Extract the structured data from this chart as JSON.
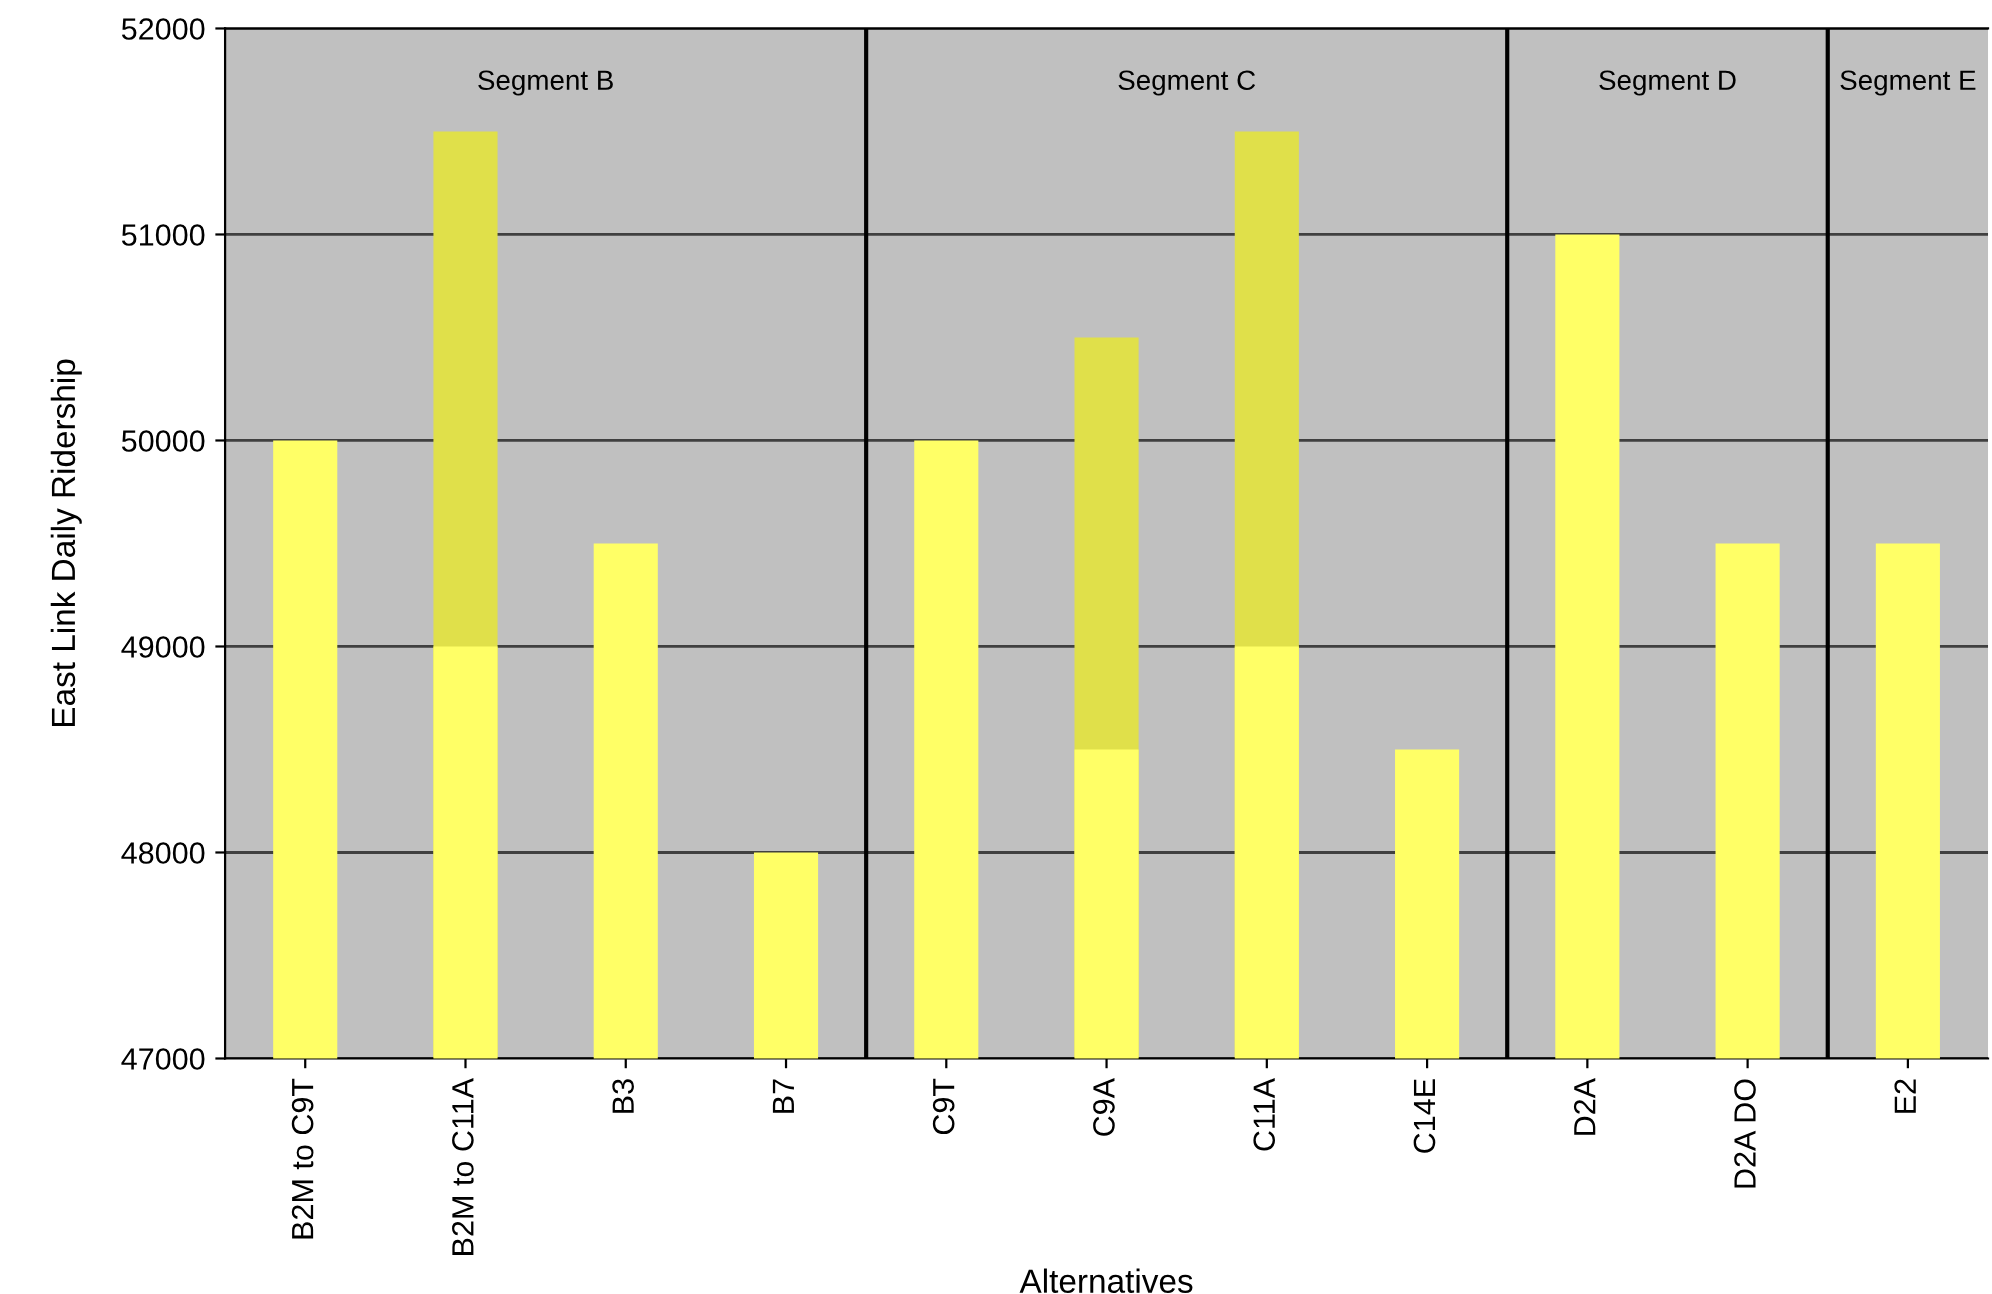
{
  "chart_data": {
    "type": "bar",
    "xlabel": "Alternatives",
    "ylabel": "East Link Daily Ridership",
    "categories": [
      "B2M to C9T",
      "B2M to C11A",
      "B3",
      "B7",
      "C9T",
      "C9A",
      "C11A",
      "C14E",
      "D2A",
      "D2A DO",
      "E2"
    ],
    "series": [
      {
        "color": "#e0e04a",
        "values": [
          null,
          51500,
          null,
          null,
          null,
          50500,
          51500,
          null,
          null,
          null,
          null
        ]
      },
      {
        "color": "#ffff66",
        "values": [
          50000,
          49000,
          49500,
          48000,
          50000,
          48500,
          49000,
          48500,
          51000,
          49500,
          49500
        ]
      }
    ],
    "ylim": [
      47000,
      52000
    ],
    "yticks": [
      47000,
      48000,
      49000,
      50000,
      51000,
      52000
    ],
    "grid": "y",
    "annotations": [
      "Segment B",
      "Segment C",
      "Segment D",
      "Segment E"
    ]
  }
}
